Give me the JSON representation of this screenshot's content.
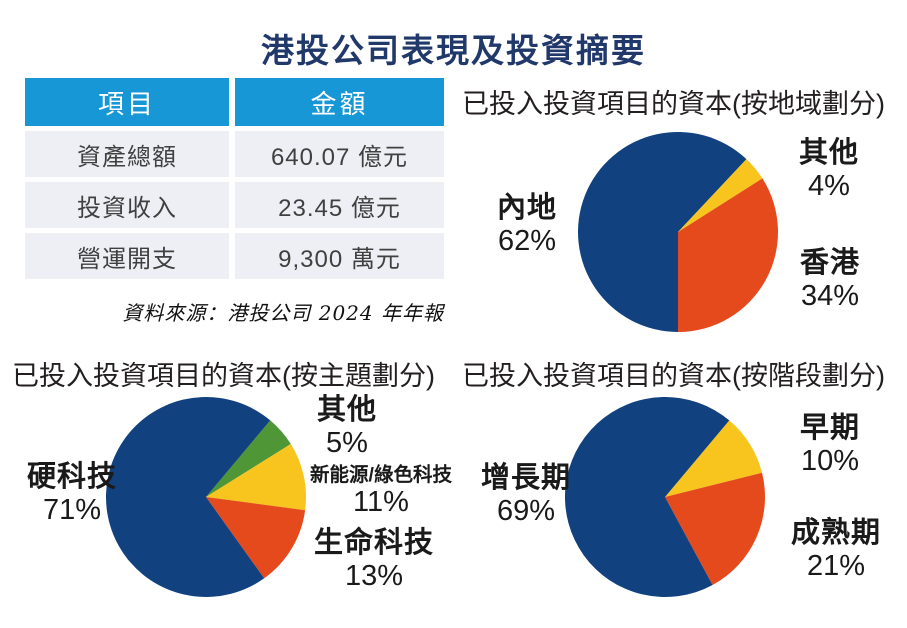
{
  "title": "港投公司表現及投資摘要",
  "table": {
    "headers": [
      "項目",
      "金額"
    ],
    "rows": [
      [
        "資產總額",
        "640.07 億元"
      ],
      [
        "投資收入",
        "23.45 億元"
      ],
      [
        "營運開支",
        "9,300 萬元"
      ]
    ]
  },
  "source_note": "資料來源：港投公司 2024 年年報",
  "colors": {
    "navy": "#11427f",
    "red": "#e54a1d",
    "yellow": "#f7c51e",
    "green": "#4f9636",
    "table_header_bg": "#1897d6",
    "table_row_bg": "#edeff5",
    "title_text": "#21386b"
  },
  "chart_data": [
    {
      "type": "pie",
      "title": "已投入投資項目的資本(按地域劃分)",
      "rotation": 180,
      "legend_position": "around",
      "slices": [
        {
          "label": "內地",
          "value": 62,
          "pct": "62%",
          "color": "#11427f"
        },
        {
          "label": "其他",
          "value": 4,
          "pct": "4%",
          "color": "#f7c51e"
        },
        {
          "label": "香港",
          "value": 34,
          "pct": "34%",
          "color": "#e54a1d"
        }
      ]
    },
    {
      "type": "pie",
      "title": "已投入投資項目的資本(按主題劃分)",
      "rotation": 40,
      "legend_position": "around",
      "slices": [
        {
          "label": "其他",
          "value": 5,
          "pct": "5%",
          "color": "#4f9636"
        },
        {
          "label": "新能源/綠色科技",
          "value": 11,
          "pct": "11%",
          "color": "#f7c51e"
        },
        {
          "label": "生命科技",
          "value": 13,
          "pct": "13%",
          "color": "#e54a1d"
        },
        {
          "label": "硬科技",
          "value": 71,
          "pct": "71%",
          "color": "#11427f"
        }
      ]
    },
    {
      "type": "pie",
      "title": "已投入投資項目的資本(按階段劃分)",
      "rotation": 40,
      "legend_position": "around",
      "slices": [
        {
          "label": "早期",
          "value": 10,
          "pct": "10%",
          "color": "#f7c51e"
        },
        {
          "label": "成熟期",
          "value": 21,
          "pct": "21%",
          "color": "#e54a1d"
        },
        {
          "label": "增長期",
          "value": 69,
          "pct": "69%",
          "color": "#11427f"
        }
      ]
    }
  ]
}
